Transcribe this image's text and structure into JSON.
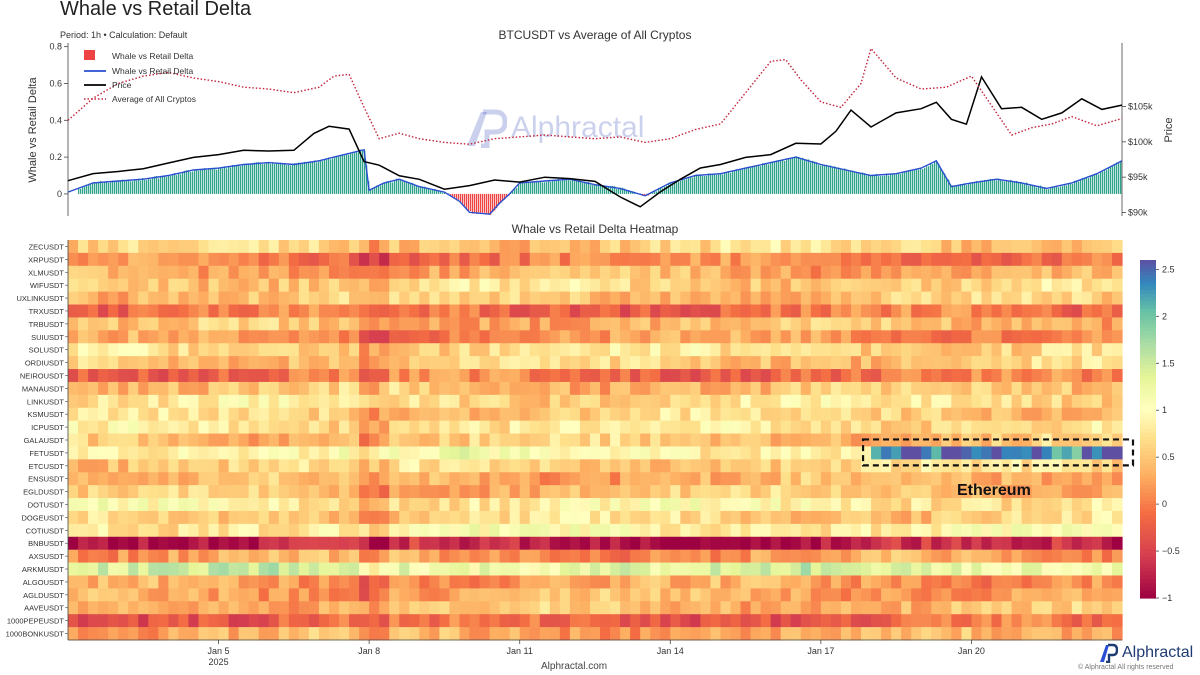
{
  "page": {
    "title": "Whale vs Retail Delta",
    "meta": "Period: 1h • Calculation: Default",
    "website": "Alphractal.com",
    "brand": "Alphractal",
    "copyright": "© Alphractal All rights reserved",
    "watermark": "Alphractal",
    "annotation": "Ethereum"
  },
  "colors": {
    "bar_positive": "#2fa38c",
    "bar_negative": "#ef4343",
    "delta_line": "#2a4fd0",
    "price_line": "#000000",
    "average_line": "#c2233b"
  },
  "chart_data": [
    {
      "type": "bar",
      "title": "BTCUSDT vs Average of All Cryptos",
      "ylabel": "Whale vs Retail Delta",
      "y2label": "Price",
      "ylim": [
        -0.12,
        0.82
      ],
      "y_ticks": [
        "0",
        "0.2",
        "0.4",
        "0.6",
        "0.8"
      ],
      "y2lim": [
        89500,
        114000
      ],
      "y2_ticks": [
        "$90k",
        "$95k",
        "$100k",
        "$105k"
      ],
      "x_range_days": [
        "2025-01-02",
        "2025-01-23"
      ],
      "legend": {
        "placement": "top-left",
        "entries": [
          "Whale vs Retail Delta",
          "Whale vs Retail Delta",
          "Price",
          "Average of All Cryptos"
        ]
      },
      "series": [
        {
          "name": "Whale vs Retail Delta",
          "kind": "bar+line",
          "x": [
            2.0,
            2.5,
            3.0,
            3.5,
            4.0,
            4.5,
            5.0,
            5.5,
            6.0,
            6.5,
            7.0,
            7.3,
            7.6,
            7.9,
            8.0,
            8.3,
            8.6,
            9.0,
            9.5,
            9.8,
            10.0,
            10.4,
            10.6,
            10.8,
            11.0,
            11.5,
            12.0,
            12.5,
            13.0,
            13.5,
            14.0,
            14.5,
            15.0,
            15.5,
            16.0,
            16.5,
            17.0,
            17.5,
            18.0,
            18.5,
            19.0,
            19.3,
            19.6,
            20.0,
            20.5,
            21.0,
            21.5,
            22.0,
            22.5,
            23.0
          ],
          "values": [
            0.01,
            0.06,
            0.07,
            0.08,
            0.1,
            0.13,
            0.14,
            0.16,
            0.17,
            0.16,
            0.18,
            0.2,
            0.22,
            0.24,
            0.02,
            0.06,
            0.08,
            0.04,
            0.01,
            -0.04,
            -0.1,
            -0.11,
            -0.05,
            0.0,
            0.06,
            0.07,
            0.08,
            0.05,
            0.03,
            -0.01,
            0.06,
            0.1,
            0.11,
            0.14,
            0.17,
            0.2,
            0.16,
            0.13,
            0.1,
            0.11,
            0.14,
            0.18,
            0.04,
            0.06,
            0.08,
            0.06,
            0.03,
            0.06,
            0.11,
            0.18
          ]
        },
        {
          "name": "Price",
          "kind": "line",
          "axis": "y2",
          "x": [
            2.0,
            2.5,
            3.0,
            3.5,
            4.0,
            4.5,
            5.0,
            5.5,
            6.0,
            6.5,
            6.9,
            7.2,
            7.6,
            7.9,
            8.2,
            8.6,
            9.0,
            9.5,
            10.0,
            10.5,
            11.0,
            11.5,
            12.0,
            12.5,
            13.0,
            13.4,
            13.8,
            14.2,
            14.6,
            15.0,
            15.5,
            16.0,
            16.5,
            17.0,
            17.3,
            17.6,
            18.0,
            18.5,
            19.0,
            19.3,
            19.6,
            19.9,
            20.2,
            20.6,
            21.0,
            21.4,
            21.8,
            22.2,
            22.6,
            23.0
          ],
          "values": [
            94500,
            95500,
            95800,
            96200,
            97000,
            97800,
            98200,
            98800,
            98700,
            98800,
            101200,
            102200,
            101800,
            97200,
            96700,
            95200,
            94700,
            93300,
            93800,
            94600,
            94300,
            95000,
            94800,
            94400,
            92200,
            90800,
            92900,
            94700,
            96300,
            96800,
            97800,
            98200,
            99800,
            99700,
            101500,
            104500,
            102100,
            104100,
            104700,
            105600,
            103200,
            102500,
            109200,
            104700,
            104900,
            103200,
            104100,
            106100,
            104600,
            105200
          ]
        },
        {
          "name": "Average of All Cryptos",
          "kind": "line-dotted",
          "x": [
            2.0,
            2.5,
            3.0,
            3.5,
            4.0,
            4.5,
            5.0,
            5.5,
            6.0,
            6.5,
            7.0,
            7.3,
            7.6,
            7.9,
            8.2,
            8.6,
            9.0,
            9.5,
            10.0,
            10.5,
            11.0,
            11.5,
            12.0,
            12.5,
            13.0,
            13.5,
            14.0,
            14.5,
            15.0,
            15.5,
            16.0,
            16.3,
            16.6,
            17.0,
            17.4,
            17.8,
            18.0,
            18.5,
            19.0,
            19.5,
            20.0,
            20.4,
            20.8,
            21.2,
            21.6,
            22.0,
            22.5,
            23.0
          ],
          "values": [
            0.4,
            0.52,
            0.6,
            0.64,
            0.66,
            0.63,
            0.61,
            0.58,
            0.57,
            0.55,
            0.58,
            0.64,
            0.65,
            0.47,
            0.3,
            0.33,
            0.3,
            0.28,
            0.27,
            0.3,
            0.31,
            0.32,
            0.31,
            0.3,
            0.31,
            0.28,
            0.3,
            0.35,
            0.38,
            0.55,
            0.72,
            0.73,
            0.62,
            0.5,
            0.47,
            0.6,
            0.79,
            0.63,
            0.57,
            0.58,
            0.64,
            0.48,
            0.32,
            0.36,
            0.38,
            0.42,
            0.37,
            0.41
          ]
        }
      ]
    },
    {
      "type": "heatmap",
      "title": "Whale vs Retail Delta Heatmap",
      "x_ticks": [
        "Jan 5",
        "Jan 8",
        "Jan 11",
        "Jan 14",
        "Jan 17",
        "Jan 20"
      ],
      "x_tick_days": [
        5,
        8,
        11,
        14,
        17,
        20
      ],
      "x_year_label": "2025",
      "x_range_days": [
        2,
        23
      ],
      "rows": [
        "ZECUSDT",
        "XRPUSDT",
        "XLMUSDT",
        "WIFUSDT",
        "UXLINKUSDT",
        "TRXUSDT",
        "TRBUSDT",
        "SUIUSDT",
        "SOLUSDT",
        "ORDIUSDT",
        "NEIROUSDT",
        "MANAUSDT",
        "LINKUSDT",
        "KSMUSDT",
        "ICPUSDT",
        "GALAUSDT",
        "FETUSDT",
        "ETCUSDT",
        "ENSUSDT",
        "EGLDUSDT",
        "DOTUSDT",
        "DOGEUSDT",
        "COTIUSDT",
        "BNBUSDT",
        "AXSUSDT",
        "ARKMUSDT",
        "ALGOUSDT",
        "AGLDUSDT",
        "AAVEUSDT",
        "1000PEPEUSDT",
        "1000BONKUSDT"
      ],
      "row_base_values": [
        0.55,
        0.05,
        0.3,
        0.6,
        0.5,
        -0.1,
        0.4,
        0.15,
        0.65,
        0.55,
        -0.05,
        0.45,
        0.7,
        0.6,
        0.75,
        0.5,
        1.0,
        0.6,
        0.35,
        0.45,
        0.85,
        0.6,
        0.9,
        -0.75,
        0.2,
        1.35,
        0.2,
        0.3,
        0.4,
        -0.2,
        0.3
      ],
      "colorscale": {
        "name": "Spectral",
        "range": [
          -1,
          2.6
        ],
        "ticks": [
          "2.5",
          "2",
          "1.5",
          "1",
          "0.5",
          "0",
          "−0.5",
          "−1"
        ],
        "tick_values": [
          2.5,
          2,
          1.5,
          1,
          0.5,
          0,
          -0.5,
          -1
        ]
      },
      "highlight": {
        "row": "FETUSDT",
        "from_day": 18.0,
        "to_day": 23.0,
        "label": "Ethereum"
      }
    }
  ]
}
